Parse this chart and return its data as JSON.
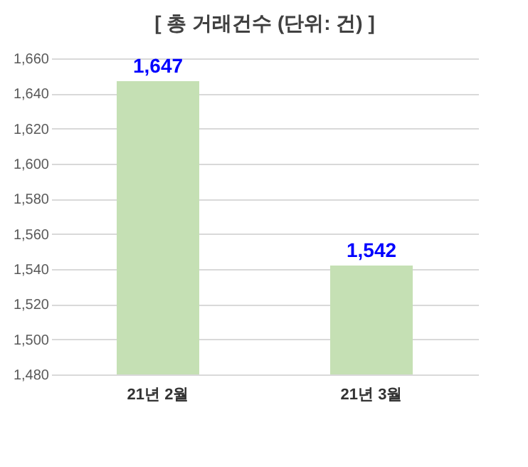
{
  "chart_data": {
    "type": "bar",
    "title": "[ 총 거래건수 (단위: 건) ]",
    "categories": [
      "21년 2월",
      "21년 3월"
    ],
    "values": [
      1647,
      1542
    ],
    "value_labels": [
      "1,647",
      "1,542"
    ],
    "color": "#c5e0b4",
    "ylim": [
      1480,
      1660
    ],
    "yticks": [
      {
        "value": 1480,
        "label": "1,480"
      },
      {
        "value": 1500,
        "label": "1,500"
      },
      {
        "value": 1520,
        "label": "1,520"
      },
      {
        "value": 1540,
        "label": "1,540"
      },
      {
        "value": 1560,
        "label": "1,560"
      },
      {
        "value": 1580,
        "label": "1,580"
      },
      {
        "value": 1600,
        "label": "1,600"
      },
      {
        "value": 1620,
        "label": "1,620"
      },
      {
        "value": 1640,
        "label": "1,640"
      },
      {
        "value": 1660,
        "label": "1,660"
      }
    ],
    "grid": "y"
  }
}
